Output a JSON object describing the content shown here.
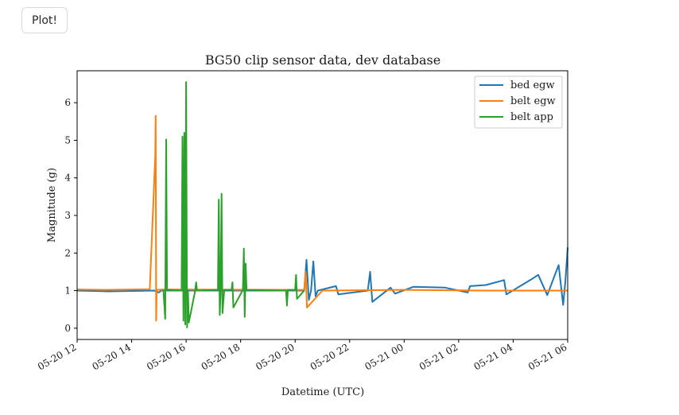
{
  "app": {
    "plot_button_label": "Plot!"
  },
  "chart_data": {
    "type": "line",
    "title": "BG50 clip sensor data, dev database",
    "xlabel": "Datetime (UTC)",
    "ylabel": "Magnitude (g)",
    "x_axis_kind": "datetime",
    "xlim": [
      "2024-05-20T12:00",
      "2024-05-21T06:00"
    ],
    "ylim": [
      -0.3,
      6.85
    ],
    "x_ticks": [
      "2024-05-20T12:00",
      "2024-05-20T14:00",
      "2024-05-20T16:00",
      "2024-05-20T18:00",
      "2024-05-20T20:00",
      "2024-05-20T22:00",
      "2024-05-21T00:00",
      "2024-05-21T02:00",
      "2024-05-21T04:00",
      "2024-05-21T06:00"
    ],
    "x_tick_labels": [
      "05-20 12",
      "05-20 14",
      "05-20 16",
      "05-20 18",
      "05-20 20",
      "05-20 22",
      "05-21 00",
      "05-21 02",
      "05-21 04",
      "05-21 06"
    ],
    "y_ticks": [
      0,
      1,
      2,
      3,
      4,
      5,
      6
    ],
    "y_tick_labels": [
      "0",
      "1",
      "2",
      "3",
      "4",
      "5",
      "6"
    ],
    "legend_position": "top-right",
    "grid": false,
    "series": [
      {
        "name": "bed egw",
        "color": "#1f77b4",
        "x": [
          "2024-05-20T12:00",
          "2024-05-20T13:10",
          "2024-05-20T14:50",
          "2024-05-20T15:00",
          "2024-05-20T15:05",
          "2024-05-20T20:20",
          "2024-05-20T20:25",
          "2024-05-20T20:30",
          "2024-05-20T20:35",
          "2024-05-20T20:40",
          "2024-05-20T20:45",
          "2024-05-20T20:50",
          "2024-05-20T21:30",
          "2024-05-20T21:35",
          "2024-05-20T22:40",
          "2024-05-20T22:45",
          "2024-05-20T22:50",
          "2024-05-20T23:30",
          "2024-05-20T23:40",
          "2024-05-21T00:20",
          "2024-05-21T01:30",
          "2024-05-21T02:20",
          "2024-05-21T02:25",
          "2024-05-21T03:00",
          "2024-05-21T03:40",
          "2024-05-21T03:45",
          "2024-05-21T04:40",
          "2024-05-21T04:55",
          "2024-05-21T05:15",
          "2024-05-21T05:40",
          "2024-05-21T05:50",
          "2024-05-21T05:55",
          "2024-05-21T06:00"
        ],
        "y": [
          1.0,
          0.98,
          1.0,
          0.95,
          1.0,
          1.0,
          1.82,
          0.75,
          1.0,
          1.78,
          0.85,
          1.0,
          1.12,
          0.9,
          1.0,
          1.5,
          0.7,
          1.08,
          0.92,
          1.1,
          1.08,
          0.95,
          1.12,
          1.15,
          1.28,
          0.9,
          1.3,
          1.42,
          0.88,
          1.68,
          0.62,
          1.25,
          2.15
        ]
      },
      {
        "name": "belt egw",
        "color": "#ff7f0e",
        "x": [
          "2024-05-20T12:00",
          "2024-05-20T13:00",
          "2024-05-20T14:40",
          "2024-05-20T14:52",
          "2024-05-20T14:53",
          "2024-05-20T14:54",
          "2024-05-20T14:55",
          "2024-05-20T15:10",
          "2024-05-20T20:20",
          "2024-05-20T20:23",
          "2024-05-20T20:26",
          "2024-05-20T21:00",
          "2024-05-21T00:00",
          "2024-05-21T03:00",
          "2024-05-21T06:00"
        ],
        "y": [
          1.03,
          1.02,
          1.04,
          4.6,
          5.65,
          0.2,
          1.02,
          1.03,
          1.02,
          1.5,
          0.55,
          1.0,
          1.02,
          1.0,
          1.0
        ]
      },
      {
        "name": "belt app",
        "color": "#2ca02c",
        "x": [
          "2024-05-20T15:10",
          "2024-05-20T15:14",
          "2024-05-20T15:16",
          "2024-05-20T15:18",
          "2024-05-20T15:50",
          "2024-05-20T15:52",
          "2024-05-20T15:54",
          "2024-05-20T15:56",
          "2024-05-20T15:58",
          "2024-05-20T16:00",
          "2024-05-20T16:02",
          "2024-05-20T16:04",
          "2024-05-20T16:06",
          "2024-05-20T16:20",
          "2024-05-20T16:22",
          "2024-05-20T16:24",
          "2024-05-20T17:10",
          "2024-05-20T17:12",
          "2024-05-20T17:14",
          "2024-05-20T17:16",
          "2024-05-20T17:18",
          "2024-05-20T17:20",
          "2024-05-20T17:24",
          "2024-05-20T17:40",
          "2024-05-20T17:42",
          "2024-05-20T17:44",
          "2024-05-20T18:05",
          "2024-05-20T18:07",
          "2024-05-20T18:09",
          "2024-05-20T18:11",
          "2024-05-20T18:13",
          "2024-05-20T19:40",
          "2024-05-20T19:42",
          "2024-05-20T19:44",
          "2024-05-20T20:00",
          "2024-05-20T20:02",
          "2024-05-20T20:04",
          "2024-05-20T20:20"
        ],
        "y": [
          1.02,
          0.25,
          5.02,
          1.02,
          1.0,
          5.1,
          0.2,
          5.2,
          0.1,
          6.55,
          0.02,
          1.02,
          0.15,
          1.0,
          1.22,
          1.0,
          1.02,
          3.42,
          0.35,
          1.0,
          3.58,
          0.4,
          1.02,
          1.02,
          1.22,
          0.55,
          1.02,
          2.12,
          0.3,
          1.72,
          1.02,
          1.0,
          0.6,
          1.02,
          1.02,
          1.42,
          0.78,
          1.0
        ]
      }
    ]
  }
}
